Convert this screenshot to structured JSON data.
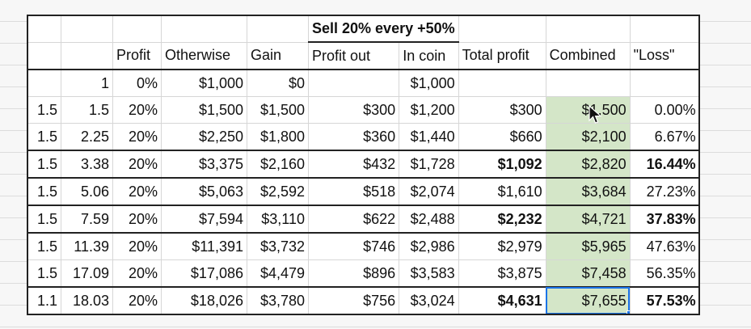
{
  "title": "Sell 20% every +50%",
  "headers": [
    "",
    "",
    "Profit",
    "Otherwise",
    "Gain",
    "Profit out",
    "In coin",
    "Total profit",
    "Combined",
    "\"Loss\""
  ],
  "rows": [
    [
      "",
      "1",
      "0%",
      "$1,000",
      "$0",
      "",
      "$1,000",
      "",
      "",
      ""
    ],
    [
      "1.5",
      "1.5",
      "20%",
      "$1,500",
      "$1,500",
      "$300",
      "$1,200",
      "$300",
      "$1,500",
      "0.00%"
    ],
    [
      "1.5",
      "2.25",
      "20%",
      "$2,250",
      "$1,800",
      "$360",
      "$1,440",
      "$660",
      "$2,100",
      "6.67%"
    ],
    [
      "1.5",
      "3.38",
      "20%",
      "$3,375",
      "$2,160",
      "$432",
      "$1,728",
      "$1,092",
      "$2,820",
      "16.44%"
    ],
    [
      "1.5",
      "5.06",
      "20%",
      "$5,063",
      "$2,592",
      "$518",
      "$2,074",
      "$1,610",
      "$3,684",
      "27.23%"
    ],
    [
      "1.5",
      "7.59",
      "20%",
      "$7,594",
      "$3,110",
      "$622",
      "$2,488",
      "$2,232",
      "$4,721",
      "37.83%"
    ],
    [
      "1.5",
      "11.39",
      "20%",
      "$11,391",
      "$3,732",
      "$746",
      "$2,986",
      "$2,979",
      "$5,965",
      "47.63%"
    ],
    [
      "1.5",
      "17.09",
      "20%",
      "$17,086",
      "$4,479",
      "$896",
      "$3,583",
      "$3,875",
      "$7,458",
      "56.35%"
    ],
    [
      "1.1",
      "18.03",
      "20%",
      "$18,026",
      "$3,780",
      "$756",
      "$3,024",
      "$4,631",
      "$7,655",
      "57.53%"
    ]
  ],
  "colors": {
    "highlight": "#d4e6c8",
    "selection": "#1a73e8",
    "border": "#222222"
  },
  "icons": {
    "cursor": "arrow-cursor-icon"
  }
}
